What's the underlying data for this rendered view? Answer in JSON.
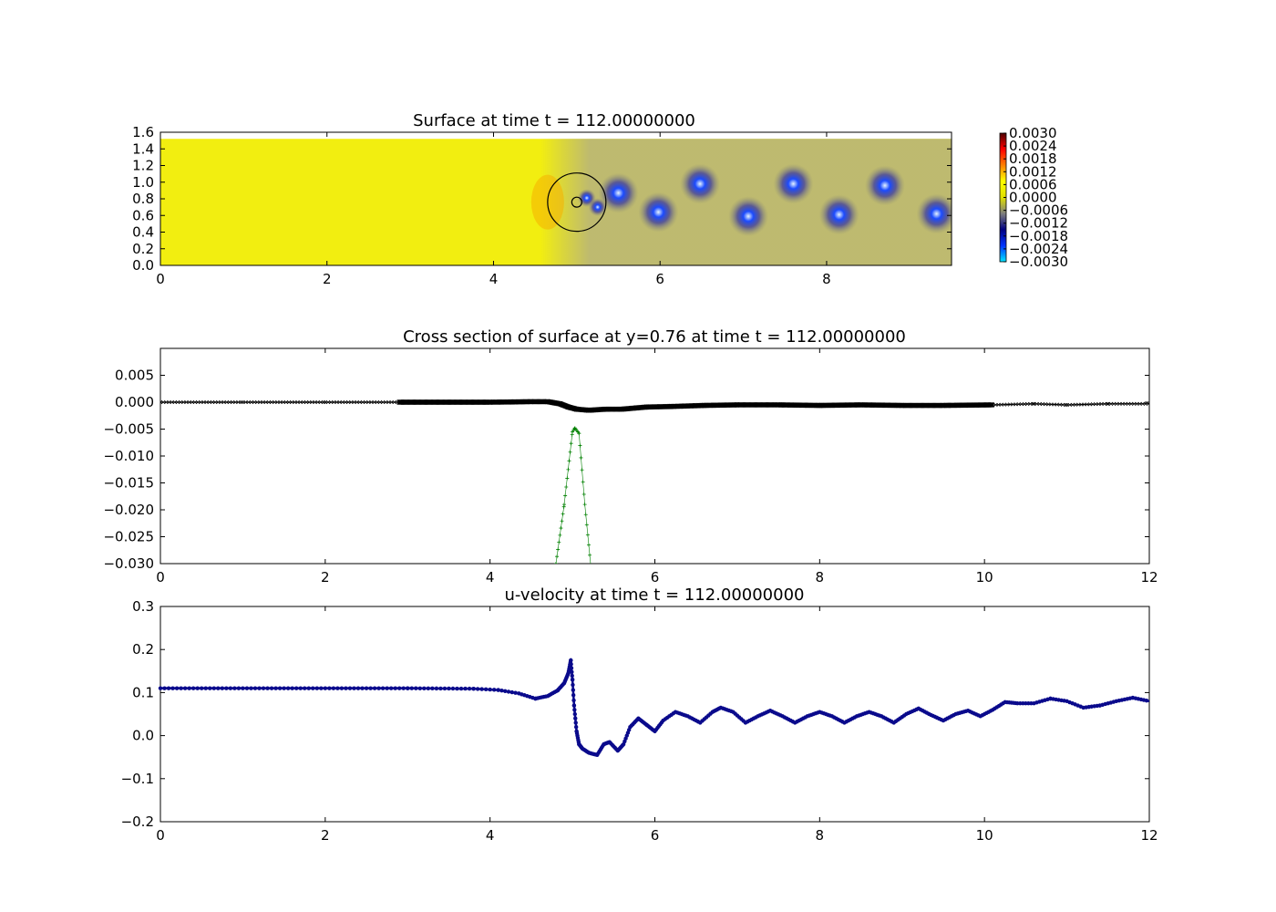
{
  "figure": {
    "background": "#ffffff"
  },
  "chart_data": [
    {
      "type": "heatmap",
      "title": "Surface at time t =   112.00000000",
      "xlim": [
        0,
        9.5
      ],
      "ylim": [
        0,
        1.6
      ],
      "x_ticks": [
        "0",
        "2",
        "4",
        "6",
        "8"
      ],
      "y_ticks": [
        "0.0",
        "0.2",
        "0.4",
        "0.6",
        "0.8",
        "1.0",
        "1.2",
        "1.4",
        "1.6"
      ],
      "field_top": 1.52,
      "base_color": "#f2ee10",
      "colorbar": {
        "range": [
          -0.003,
          0.003
        ],
        "tick_labels": [
          "0.0030",
          "0.0024",
          "0.0018",
          "0.0012",
          "0.0006",
          "0.0000",
          "−0.0006",
          "−0.0012",
          "−0.0018",
          "−0.0024",
          "−0.0030"
        ],
        "colormap": [
          "#00e5ff",
          "#0033ff",
          "#000080",
          "#7f7f7f",
          "#e0e000",
          "#ffff00",
          "#ff8000",
          "#ff0000",
          "#4d0000"
        ]
      },
      "gray_wake_region": {
        "x": [
          5.0,
          9.5
        ],
        "color": "#b8b47a"
      },
      "vortices": [
        {
          "x": 5.5,
          "y": 0.87
        },
        {
          "x": 5.98,
          "y": 0.64
        },
        {
          "x": 6.48,
          "y": 0.98
        },
        {
          "x": 7.06,
          "y": 0.59
        },
        {
          "x": 7.6,
          "y": 0.98
        },
        {
          "x": 8.15,
          "y": 0.61
        },
        {
          "x": 8.7,
          "y": 0.96
        },
        {
          "x": 9.32,
          "y": 0.62
        },
        {
          "x": 5.12,
          "y": 0.81
        },
        {
          "x": 5.25,
          "y": 0.7
        }
      ],
      "obstacle_circles": [
        {
          "cx": 5.0,
          "cy": 0.76,
          "r": 0.35
        },
        {
          "cx": 5.0,
          "cy": 0.76,
          "r": 0.06
        }
      ]
    },
    {
      "type": "scatter",
      "title": "Cross section of surface at y=0.76 at time t =   112.00000000",
      "xlim": [
        0,
        12
      ],
      "ylim": [
        -0.03,
        0.01
      ],
      "x_ticks": [
        "0",
        "2",
        "4",
        "6",
        "8",
        "10",
        "12"
      ],
      "y_ticks": [
        "0.005",
        "0.000",
        "−0.005",
        "−0.010",
        "−0.015",
        "−0.020",
        "−0.025",
        "−0.030"
      ],
      "series": [
        {
          "color": "#000000",
          "marker": "x",
          "points": [
            [
              0,
              0.0
            ],
            [
              1,
              0.0
            ],
            [
              2,
              0.0
            ],
            [
              2.9,
              0.0
            ],
            [
              3.5,
              0.0
            ],
            [
              4.0,
              0.0
            ],
            [
              4.3,
              5e-05
            ],
            [
              4.5,
              0.0001
            ],
            [
              4.7,
              0.0001
            ],
            [
              4.85,
              -0.0003
            ],
            [
              4.95,
              -0.0009
            ],
            [
              5.05,
              -0.0013
            ],
            [
              5.2,
              -0.0015
            ],
            [
              5.4,
              -0.0013
            ],
            [
              5.6,
              -0.0013
            ],
            [
              5.9,
              -0.0009
            ],
            [
              6.2,
              -0.0008
            ],
            [
              6.6,
              -0.0006
            ],
            [
              7.0,
              -0.0005
            ],
            [
              7.5,
              -0.0005
            ],
            [
              8.0,
              -0.0006
            ],
            [
              8.5,
              -0.0005
            ],
            [
              9.0,
              -0.0006
            ],
            [
              9.5,
              -0.0006
            ],
            [
              10.1,
              -0.0005
            ],
            [
              10.6,
              -0.0003
            ],
            [
              11.0,
              -0.0005
            ],
            [
              11.5,
              -0.0003
            ],
            [
              12.0,
              -0.0003
            ]
          ]
        },
        {
          "color": "#008000",
          "marker": "+",
          "points": [
            [
              4.8,
              -0.03
            ],
            [
              4.9,
              -0.019
            ],
            [
              5.0,
              -0.0055
            ],
            [
              5.03,
              -0.0048
            ],
            [
              5.08,
              -0.0058
            ],
            [
              5.15,
              -0.019
            ],
            [
              5.22,
              -0.03
            ]
          ]
        }
      ]
    },
    {
      "type": "line",
      "title": "u-velocity at time t =   112.00000000",
      "xlim": [
        0,
        12
      ],
      "ylim": [
        -0.2,
        0.3
      ],
      "x_ticks": [
        "0",
        "2",
        "4",
        "6",
        "8",
        "10",
        "12"
      ],
      "y_ticks": [
        "0.3",
        "0.2",
        "0.1",
        "0.0",
        "−0.1",
        "−0.2"
      ],
      "series": [
        {
          "color": "#0a0a8c",
          "marker": "dot",
          "points": [
            [
              0,
              0.11
            ],
            [
              1,
              0.11
            ],
            [
              2,
              0.11
            ],
            [
              3,
              0.11
            ],
            [
              3.8,
              0.109
            ],
            [
              4.1,
              0.106
            ],
            [
              4.35,
              0.098
            ],
            [
              4.55,
              0.086
            ],
            [
              4.7,
              0.092
            ],
            [
              4.82,
              0.105
            ],
            [
              4.9,
              0.122
            ],
            [
              4.95,
              0.145
            ],
            [
              4.98,
              0.175
            ],
            [
              5.0,
              0.13
            ],
            [
              5.02,
              0.07
            ],
            [
              5.05,
              0.01
            ],
            [
              5.08,
              -0.02
            ],
            [
              5.12,
              -0.03
            ],
            [
              5.2,
              -0.04
            ],
            [
              5.3,
              -0.045
            ],
            [
              5.38,
              -0.02
            ],
            [
              5.45,
              -0.015
            ],
            [
              5.55,
              -0.035
            ],
            [
              5.62,
              -0.02
            ],
            [
              5.7,
              0.02
            ],
            [
              5.8,
              0.04
            ],
            [
              5.9,
              0.025
            ],
            [
              6.0,
              0.01
            ],
            [
              6.1,
              0.035
            ],
            [
              6.25,
              0.055
            ],
            [
              6.4,
              0.045
            ],
            [
              6.55,
              0.03
            ],
            [
              6.7,
              0.055
            ],
            [
              6.8,
              0.065
            ],
            [
              6.95,
              0.055
            ],
            [
              7.1,
              0.03
            ],
            [
              7.25,
              0.045
            ],
            [
              7.4,
              0.058
            ],
            [
              7.55,
              0.045
            ],
            [
              7.7,
              0.03
            ],
            [
              7.85,
              0.045
            ],
            [
              8.0,
              0.055
            ],
            [
              8.15,
              0.045
            ],
            [
              8.3,
              0.03
            ],
            [
              8.45,
              0.045
            ],
            [
              8.6,
              0.055
            ],
            [
              8.75,
              0.045
            ],
            [
              8.9,
              0.03
            ],
            [
              9.05,
              0.05
            ],
            [
              9.2,
              0.063
            ],
            [
              9.35,
              0.048
            ],
            [
              9.5,
              0.035
            ],
            [
              9.65,
              0.05
            ],
            [
              9.8,
              0.058
            ],
            [
              9.95,
              0.045
            ],
            [
              10.1,
              0.06
            ],
            [
              10.25,
              0.078
            ],
            [
              10.4,
              0.075
            ],
            [
              10.6,
              0.075
            ],
            [
              10.8,
              0.086
            ],
            [
              11.0,
              0.08
            ],
            [
              11.2,
              0.065
            ],
            [
              11.4,
              0.07
            ],
            [
              11.6,
              0.08
            ],
            [
              11.8,
              0.088
            ],
            [
              12.0,
              0.08
            ]
          ]
        }
      ]
    }
  ]
}
